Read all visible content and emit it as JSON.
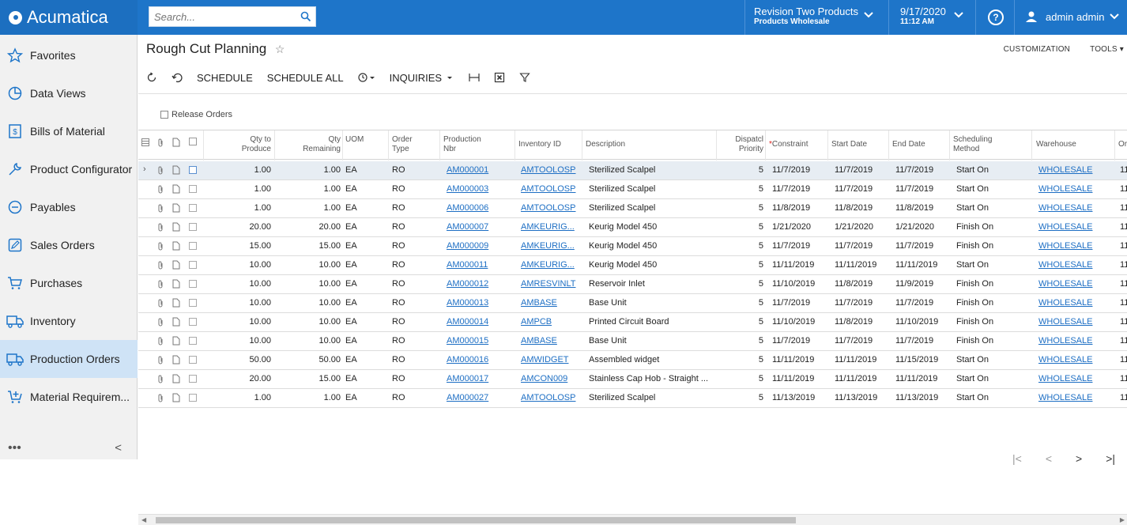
{
  "app": {
    "name": "Acumatica"
  },
  "search": {
    "placeholder": "Search..."
  },
  "tenant": {
    "name": "Revision Two Products",
    "branch": "Products Wholesale"
  },
  "datetime": {
    "date": "9/17/2020",
    "time": "11:12 AM"
  },
  "user": {
    "name": "admin admin"
  },
  "sidebar": {
    "items": [
      {
        "label": "Favorites",
        "icon": "star-icon"
      },
      {
        "label": "Data Views",
        "icon": "pie-chart-icon"
      },
      {
        "label": "Bills of Material",
        "icon": "document-dollar-icon"
      },
      {
        "label": "Product Configurator",
        "icon": "wrench-icon"
      },
      {
        "label": "Payables",
        "icon": "minus-circle-icon"
      },
      {
        "label": "Sales Orders",
        "icon": "pencil-box-icon"
      },
      {
        "label": "Purchases",
        "icon": "cart-icon"
      },
      {
        "label": "Inventory",
        "icon": "truck-icon"
      },
      {
        "label": "Production Orders",
        "icon": "truck-icon"
      },
      {
        "label": "Material Requirem...",
        "icon": "cart-plus-icon"
      }
    ],
    "more": "•••",
    "collapse": "<"
  },
  "page": {
    "title": "Rough Cut Planning",
    "customization": "CUSTOMIZATION",
    "tools": "TOOLS"
  },
  "toolbar": {
    "schedule": "SCHEDULE",
    "schedule_all": "SCHEDULE ALL",
    "inquiries": "INQUIRIES"
  },
  "filter": {
    "release_orders": "Release Orders"
  },
  "columns": {
    "qty_to_produce": [
      "Qty to",
      "Produce"
    ],
    "qty_remaining": [
      "Qty",
      "Remaining"
    ],
    "uom": "UOM",
    "order_type": [
      "Order",
      "Type"
    ],
    "production_nbr": [
      "Production",
      "Nbr"
    ],
    "inventory_id": "Inventory ID",
    "description": "Description",
    "dispatch_priority": [
      "Dispatcl",
      "Priority"
    ],
    "constraint": "Constraint",
    "start_date": "Start Date",
    "end_date": "End Date",
    "scheduling_method": [
      "Scheduling",
      "Method"
    ],
    "warehouse": "Warehouse",
    "order_date": "Or"
  },
  "rows": [
    {
      "qty": "1.00",
      "rem": "1.00",
      "uom": "EA",
      "type": "RO",
      "prod": "AM000001",
      "inv": "AMTOOLOSP",
      "desc": "Sterilized Scalpel",
      "prio": "5",
      "cons": "11/7/2019",
      "start": "11/7/2019",
      "end": "11/7/2019",
      "method": "Start On",
      "wh": "WHOLESALE",
      "ord": "11"
    },
    {
      "qty": "1.00",
      "rem": "1.00",
      "uom": "EA",
      "type": "RO",
      "prod": "AM000003",
      "inv": "AMTOOLOSP",
      "desc": "Sterilized Scalpel",
      "prio": "5",
      "cons": "11/7/2019",
      "start": "11/7/2019",
      "end": "11/7/2019",
      "method": "Start On",
      "wh": "WHOLESALE",
      "ord": "11"
    },
    {
      "qty": "1.00",
      "rem": "1.00",
      "uom": "EA",
      "type": "RO",
      "prod": "AM000006",
      "inv": "AMTOOLOSP",
      "desc": "Sterilized Scalpel",
      "prio": "5",
      "cons": "11/8/2019",
      "start": "11/8/2019",
      "end": "11/8/2019",
      "method": "Start On",
      "wh": "WHOLESALE",
      "ord": "11"
    },
    {
      "qty": "20.00",
      "rem": "20.00",
      "uom": "EA",
      "type": "RO",
      "prod": "AM000007",
      "inv": "AMKEURIG...",
      "desc": "Keurig Model 450",
      "prio": "5",
      "cons": "1/21/2020",
      "start": "1/21/2020",
      "end": "1/21/2020",
      "method": "Finish On",
      "wh": "WHOLESALE",
      "ord": "11"
    },
    {
      "qty": "15.00",
      "rem": "15.00",
      "uom": "EA",
      "type": "RO",
      "prod": "AM000009",
      "inv": "AMKEURIG...",
      "desc": "Keurig Model 450",
      "prio": "5",
      "cons": "11/7/2019",
      "start": "11/7/2019",
      "end": "11/7/2019",
      "method": "Finish On",
      "wh": "WHOLESALE",
      "ord": "11"
    },
    {
      "qty": "10.00",
      "rem": "10.00",
      "uom": "EA",
      "type": "RO",
      "prod": "AM000011",
      "inv": "AMKEURIG...",
      "desc": "Keurig Model 450",
      "prio": "5",
      "cons": "11/11/2019",
      "start": "11/11/2019",
      "end": "11/11/2019",
      "method": "Start On",
      "wh": "WHOLESALE",
      "ord": "11"
    },
    {
      "qty": "10.00",
      "rem": "10.00",
      "uom": "EA",
      "type": "RO",
      "prod": "AM000012",
      "inv": "AMRESVINLT",
      "desc": "Reservoir Inlet",
      "prio": "5",
      "cons": "11/10/2019",
      "start": "11/8/2019",
      "end": "11/9/2019",
      "method": "Finish On",
      "wh": "WHOLESALE",
      "ord": "11"
    },
    {
      "qty": "10.00",
      "rem": "10.00",
      "uom": "EA",
      "type": "RO",
      "prod": "AM000013",
      "inv": "AMBASE",
      "desc": "Base Unit",
      "prio": "5",
      "cons": "11/7/2019",
      "start": "11/7/2019",
      "end": "11/7/2019",
      "method": "Finish On",
      "wh": "WHOLESALE",
      "ord": "11"
    },
    {
      "qty": "10.00",
      "rem": "10.00",
      "uom": "EA",
      "type": "RO",
      "prod": "AM000014",
      "inv": "AMPCB",
      "desc": "Printed Circuit Board",
      "prio": "5",
      "cons": "11/10/2019",
      "start": "11/8/2019",
      "end": "11/10/2019",
      "method": "Finish On",
      "wh": "WHOLESALE",
      "ord": "11"
    },
    {
      "qty": "10.00",
      "rem": "10.00",
      "uom": "EA",
      "type": "RO",
      "prod": "AM000015",
      "inv": "AMBASE",
      "desc": "Base Unit",
      "prio": "5",
      "cons": "11/7/2019",
      "start": "11/7/2019",
      "end": "11/7/2019",
      "method": "Finish On",
      "wh": "WHOLESALE",
      "ord": "11"
    },
    {
      "qty": "50.00",
      "rem": "50.00",
      "uom": "EA",
      "type": "RO",
      "prod": "AM000016",
      "inv": "AMWIDGET",
      "desc": "Assembled widget",
      "prio": "5",
      "cons": "11/11/2019",
      "start": "11/11/2019",
      "end": "11/15/2019",
      "method": "Start On",
      "wh": "WHOLESALE",
      "ord": "11"
    },
    {
      "qty": "20.00",
      "rem": "15.00",
      "uom": "EA",
      "type": "RO",
      "prod": "AM000017",
      "inv": "AMCON009",
      "desc": "Stainless Cap Hob - Straight ...",
      "prio": "5",
      "cons": "11/11/2019",
      "start": "11/11/2019",
      "end": "11/11/2019",
      "method": "Start On",
      "wh": "WHOLESALE",
      "ord": "11"
    },
    {
      "qty": "1.00",
      "rem": "1.00",
      "uom": "EA",
      "type": "RO",
      "prod": "AM000027",
      "inv": "AMTOOLOSP",
      "desc": "Sterilized Scalpel",
      "prio": "5",
      "cons": "11/13/2019",
      "start": "11/13/2019",
      "end": "11/13/2019",
      "method": "Start On",
      "wh": "WHOLESALE",
      "ord": "11"
    }
  ],
  "colors": {
    "brand": "#1e75c9",
    "active_nav": "#cfe3f6",
    "link": "#1e6fc4",
    "required_star": "#e0201b"
  }
}
